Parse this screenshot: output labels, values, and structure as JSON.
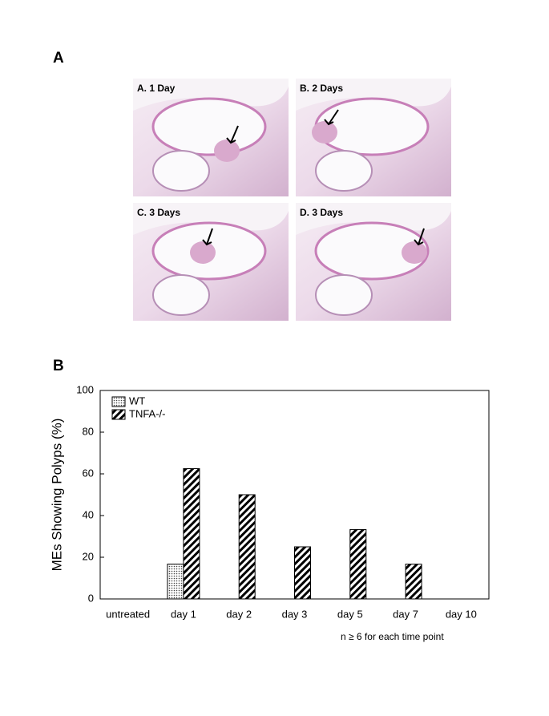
{
  "figure": {
    "panel_a_label": "A",
    "panel_b_label": "B",
    "images": [
      {
        "label": "A. 1 Day"
      },
      {
        "label": "B. 2 Days"
      },
      {
        "label": "C. 3 Days"
      },
      {
        "label": "D. 3 Days"
      }
    ]
  },
  "chart_data": {
    "type": "bar",
    "y_label": "MEs Showing Polyps (%)",
    "note": "n ≥ 6 for each time point",
    "categories": [
      "untreated",
      "day 1",
      "day 2",
      "day 3",
      "day 5",
      "day 7",
      "day 10"
    ],
    "series": [
      {
        "name": "WT",
        "color": "#000000",
        "pattern": "dots",
        "values": [
          0,
          16.7,
          0,
          0,
          0,
          0,
          0
        ]
      },
      {
        "name": "TNFA-/-",
        "color": "#000000",
        "pattern": "hatch",
        "values": [
          0,
          62.5,
          50,
          25,
          33.3,
          16.7,
          0
        ]
      }
    ],
    "ylim": [
      0,
      100
    ],
    "yticks": [
      0,
      20,
      40,
      60,
      80,
      100
    ],
    "legend": "upper left"
  }
}
